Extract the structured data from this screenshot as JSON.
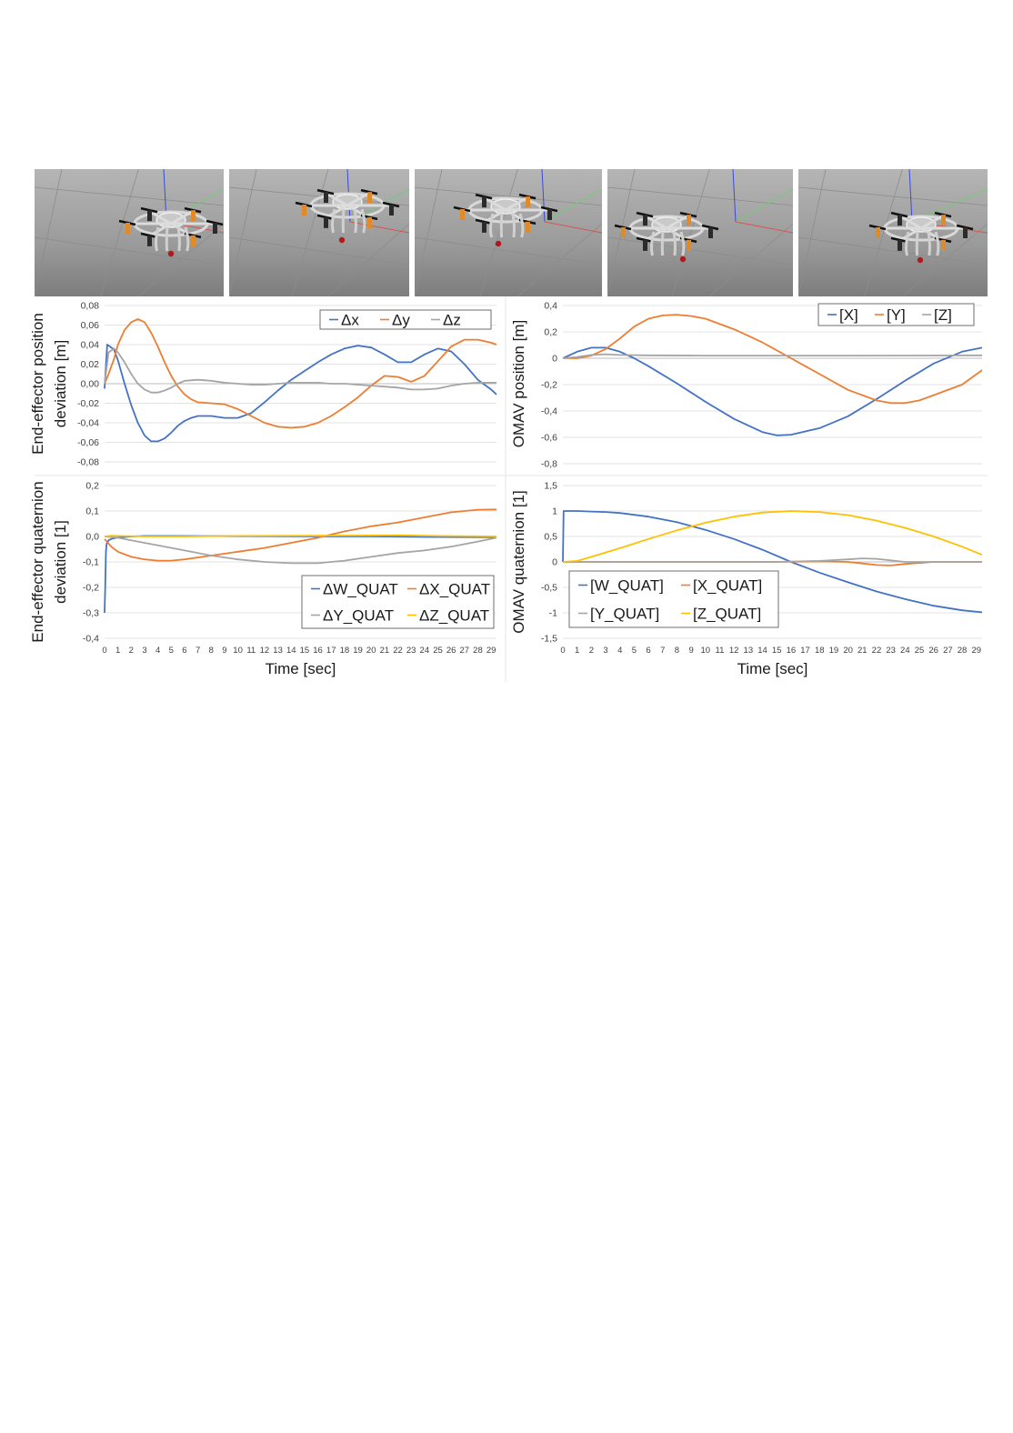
{
  "snapshots": [
    {
      "name": "snapshot-1"
    },
    {
      "name": "snapshot-2"
    },
    {
      "name": "snapshot-3"
    },
    {
      "name": "snapshot-4"
    },
    {
      "name": "snapshot-5"
    }
  ],
  "chart_data": [
    {
      "id": "ee-position",
      "type": "line",
      "ylabel": [
        "End-effector position",
        "deviation [m]"
      ],
      "xlabel": "",
      "ylim": [
        -0.08,
        0.08
      ],
      "yticks": [
        "0,08",
        "0,06",
        "0,04",
        "0,02",
        "0,00",
        "-0,02",
        "-0,04",
        "-0,06",
        "-0,08"
      ],
      "yvalues": [
        0.08,
        0.06,
        0.04,
        0.02,
        0,
        -0.02,
        -0.04,
        -0.06,
        -0.08
      ],
      "xlim": [
        0,
        29.4
      ],
      "xticks": [],
      "legend_position": "top-right",
      "series": [
        {
          "name": "Δx",
          "color": "#4472C4",
          "x": [
            0,
            0.2,
            0.4,
            0.7,
            1,
            1.5,
            2,
            2.5,
            3,
            3.5,
            4,
            4.5,
            5,
            5.5,
            6,
            6.5,
            7,
            8,
            9,
            10,
            11,
            12,
            13,
            14,
            15,
            16,
            17,
            18,
            19,
            20,
            21,
            22,
            23,
            24,
            25,
            26,
            27,
            28,
            29,
            29.4
          ],
          "y": [
            -0.005,
            0.04,
            0.038,
            0.035,
            0.024,
            0.0,
            -0.022,
            -0.04,
            -0.053,
            -0.059,
            -0.059,
            -0.056,
            -0.05,
            -0.043,
            -0.038,
            -0.035,
            -0.033,
            -0.033,
            -0.035,
            -0.035,
            -0.03,
            -0.019,
            -0.007,
            0.004,
            0.013,
            0.022,
            0.03,
            0.036,
            0.039,
            0.037,
            0.03,
            0.022,
            0.022,
            0.03,
            0.036,
            0.033,
            0.02,
            0.004,
            -0.006,
            -0.011
          ]
        },
        {
          "name": "Δy",
          "color": "#ED7D31",
          "x": [
            0,
            0.3,
            0.7,
            1,
            1.5,
            2,
            2.5,
            3,
            3.5,
            4,
            4.5,
            5,
            5.5,
            6,
            6.5,
            7,
            8,
            9,
            10,
            11,
            12,
            13,
            14,
            15,
            16,
            17,
            18,
            19,
            20,
            21,
            22,
            23,
            24,
            25,
            26,
            27,
            28,
            29,
            29.4
          ],
          "y": [
            0.0,
            0.01,
            0.025,
            0.04,
            0.055,
            0.063,
            0.066,
            0.063,
            0.052,
            0.038,
            0.022,
            0.008,
            -0.003,
            -0.011,
            -0.016,
            -0.019,
            -0.02,
            -0.021,
            -0.026,
            -0.033,
            -0.04,
            -0.044,
            -0.045,
            -0.044,
            -0.04,
            -0.033,
            -0.024,
            -0.014,
            -0.002,
            0.008,
            0.007,
            0.002,
            0.008,
            0.023,
            0.038,
            0.045,
            0.045,
            0.042,
            0.04
          ]
        },
        {
          "name": "Δz",
          "color": "#A5A5A5",
          "x": [
            0,
            0.3,
            0.7,
            1,
            1.5,
            2,
            2.5,
            3,
            3.5,
            4,
            4.5,
            5,
            5.5,
            6,
            7,
            8,
            9,
            10,
            11,
            12,
            13,
            14,
            15,
            16,
            17,
            18,
            19,
            20,
            21,
            22,
            23,
            24,
            25,
            26,
            27,
            28,
            29,
            29.4
          ],
          "y": [
            0.0,
            0.032,
            0.036,
            0.032,
            0.022,
            0.01,
            0.0,
            -0.006,
            -0.009,
            -0.009,
            -0.007,
            -0.004,
            0.0,
            0.003,
            0.004,
            0.003,
            0.001,
            0.0,
            -0.001,
            -0.001,
            0.0,
            0.001,
            0.001,
            0.001,
            0.0,
            0.0,
            -0.001,
            -0.002,
            -0.003,
            -0.004,
            -0.006,
            -0.006,
            -0.005,
            -0.002,
            0.0,
            0.001,
            0.001,
            0.001
          ]
        }
      ]
    },
    {
      "id": "omav-position",
      "type": "line",
      "ylabel": [
        "OMAV position [m]"
      ],
      "xlabel": "",
      "ylim": [
        -0.8,
        0.4
      ],
      "yticks": [
        "0,4",
        "0,2",
        "0",
        "-0,2",
        "-0,4",
        "-0,6",
        "-0,8"
      ],
      "yvalues": [
        0.4,
        0.2,
        0,
        -0.2,
        -0.4,
        -0.6,
        -0.8
      ],
      "xlim": [
        0,
        29.4
      ],
      "xticks": [],
      "legend_position": "top-right",
      "series": [
        {
          "name": "[X]",
          "color": "#4472C4",
          "x": [
            0,
            1,
            2,
            3,
            4,
            5,
            6,
            8,
            10,
            12,
            14,
            15,
            16,
            18,
            20,
            22,
            24,
            26,
            28,
            29.4
          ],
          "y": [
            0.0,
            0.05,
            0.08,
            0.08,
            0.05,
            0.0,
            -0.06,
            -0.19,
            -0.33,
            -0.46,
            -0.56,
            -0.585,
            -0.58,
            -0.53,
            -0.44,
            -0.31,
            -0.17,
            -0.04,
            0.05,
            0.08
          ]
        },
        {
          "name": "[Y]",
          "color": "#ED7D31",
          "x": [
            0,
            1,
            2,
            3,
            4,
            5,
            6,
            7,
            8,
            9,
            10,
            12,
            14,
            16,
            18,
            20,
            22,
            23,
            24,
            25,
            26,
            28,
            29.4
          ],
          "y": [
            0.0,
            0.0,
            0.02,
            0.07,
            0.15,
            0.24,
            0.3,
            0.325,
            0.33,
            0.32,
            0.3,
            0.22,
            0.12,
            0.0,
            -0.12,
            -0.24,
            -0.32,
            -0.34,
            -0.34,
            -0.32,
            -0.28,
            -0.2,
            -0.09
          ]
        },
        {
          "name": "[Z]",
          "color": "#A5A5A5",
          "x": [
            0,
            1,
            2,
            3,
            4,
            6,
            10,
            15,
            20,
            25,
            29.4
          ],
          "y": [
            0.0,
            0.01,
            0.025,
            0.03,
            0.025,
            0.022,
            0.02,
            0.02,
            0.02,
            0.021,
            0.022
          ]
        }
      ]
    },
    {
      "id": "ee-quaternion",
      "type": "line",
      "ylabel": [
        "End-effector quaternion",
        "deviation [1]"
      ],
      "xlabel": "Time [sec]",
      "ylim": [
        -0.4,
        0.2
      ],
      "yticks": [
        "0,2",
        "0,1",
        "0,0",
        "-0,1",
        "-0,2",
        "-0,3",
        "-0,4"
      ],
      "yvalues": [
        0.2,
        0.1,
        0,
        -0.1,
        -0.2,
        -0.3,
        -0.4
      ],
      "xlim": [
        0,
        29.4
      ],
      "xticks": [
        "0",
        "1",
        "2",
        "3",
        "4",
        "5",
        "6",
        "7",
        "8",
        "9",
        "10",
        "11",
        "12",
        "13",
        "14",
        "15",
        "16",
        "17",
        "18",
        "19",
        "20",
        "21",
        "22",
        "23",
        "24",
        "25",
        "26",
        "27",
        "28",
        "29"
      ],
      "legend_position": "bottom-right",
      "series": [
        {
          "name": "ΔW_QUAT",
          "color": "#4472C4",
          "x": [
            0,
            0.05,
            0.1,
            0.15,
            0.3,
            0.6,
            1,
            2,
            3,
            5,
            10,
            15,
            20,
            25,
            29.4
          ],
          "y": [
            -0.3,
            -0.2,
            -0.06,
            -0.03,
            -0.015,
            -0.008,
            -0.004,
            0.0,
            0.002,
            0.002,
            0.001,
            0.0,
            0.0,
            -0.002,
            -0.003
          ]
        },
        {
          "name": "ΔX_QUAT",
          "color": "#ED7D31",
          "x": [
            0,
            0.5,
            1,
            2,
            3,
            4,
            5,
            6,
            8,
            10,
            12,
            14,
            16,
            18,
            20,
            22,
            24,
            26,
            28,
            29.4
          ],
          "y": [
            -0.01,
            -0.04,
            -0.06,
            -0.08,
            -0.09,
            -0.095,
            -0.095,
            -0.09,
            -0.075,
            -0.06,
            -0.045,
            -0.025,
            -0.005,
            0.02,
            0.04,
            0.055,
            0.075,
            0.095,
            0.105,
            0.106
          ]
        },
        {
          "name": "ΔY_QUAT",
          "color": "#A5A5A5",
          "x": [
            0,
            1,
            2,
            4,
            6,
            8,
            10,
            12,
            14,
            16,
            18,
            20,
            22,
            24,
            26,
            28,
            29.4
          ],
          "y": [
            0.0,
            -0.005,
            -0.015,
            -0.035,
            -0.055,
            -0.075,
            -0.09,
            -0.1,
            -0.105,
            -0.105,
            -0.095,
            -0.08,
            -0.065,
            -0.055,
            -0.04,
            -0.02,
            -0.005
          ]
        },
        {
          "name": "ΔZ_QUAT",
          "color": "#FFC000",
          "x": [
            0,
            0.5,
            1,
            3,
            6,
            10,
            15,
            20,
            22,
            25,
            29.4
          ],
          "y": [
            0.0,
            0.003,
            0.002,
            0.0,
            0.0,
            0.002,
            0.003,
            0.004,
            0.005,
            0.002,
            0.0
          ]
        }
      ]
    },
    {
      "id": "omav-quaternion",
      "type": "line",
      "ylabel": [
        "OMAV quaternion [1]"
      ],
      "xlabel": "Time [sec]",
      "ylim": [
        -1.5,
        1.5
      ],
      "yticks": [
        "1,5",
        "1",
        "0,5",
        "0",
        "-0,5",
        "-1",
        "-1,5"
      ],
      "yvalues": [
        1.5,
        1,
        0.5,
        0,
        -0.5,
        -1,
        -1.5
      ],
      "xlim": [
        0,
        29.4
      ],
      "xticks": [
        "0",
        "1",
        "2",
        "3",
        "4",
        "5",
        "6",
        "7",
        "8",
        "9",
        "10",
        "11",
        "12",
        "13",
        "14",
        "15",
        "16",
        "17",
        "18",
        "19",
        "20",
        "21",
        "22",
        "23",
        "24",
        "25",
        "26",
        "27",
        "28",
        "29"
      ],
      "legend_position": "bottom-left",
      "series": [
        {
          "name": "[W_QUAT]",
          "color": "#4472C4",
          "x": [
            0,
            0.05,
            1,
            2,
            3,
            4,
            6,
            8,
            10,
            12,
            14,
            16,
            18,
            20,
            22,
            24,
            26,
            28,
            29.4
          ],
          "y": [
            0.0,
            1.0,
            1.0,
            0.99,
            0.98,
            0.96,
            0.89,
            0.78,
            0.63,
            0.45,
            0.24,
            0.0,
            -0.21,
            -0.4,
            -0.58,
            -0.73,
            -0.86,
            -0.95,
            -0.99
          ]
        },
        {
          "name": "[X_QUAT]",
          "color": "#ED7D31",
          "x": [
            0,
            5,
            10,
            15,
            18,
            20,
            21,
            22,
            23,
            24,
            26,
            29.4
          ],
          "y": [
            0.0,
            0.0,
            0.0,
            0.0,
            0.01,
            0.0,
            -0.03,
            -0.06,
            -0.07,
            -0.04,
            0.0,
            0.0
          ]
        },
        {
          "name": "[Y_QUAT]",
          "color": "#A5A5A5",
          "x": [
            0,
            5,
            10,
            15,
            18,
            20,
            21,
            22,
            23,
            24,
            26,
            29.4
          ],
          "y": [
            0.0,
            0.0,
            0.0,
            0.0,
            0.02,
            0.05,
            0.07,
            0.06,
            0.03,
            0.0,
            0.0,
            0.0
          ]
        },
        {
          "name": "[Z_QUAT]",
          "color": "#FFC000",
          "x": [
            0,
            1,
            2,
            4,
            6,
            8,
            10,
            12,
            14,
            16,
            18,
            20,
            22,
            24,
            26,
            28,
            29.4
          ],
          "y": [
            0.0,
            0.02,
            0.1,
            0.27,
            0.45,
            0.62,
            0.77,
            0.89,
            0.97,
            1.0,
            0.98,
            0.92,
            0.81,
            0.67,
            0.5,
            0.3,
            0.14
          ]
        }
      ]
    }
  ]
}
